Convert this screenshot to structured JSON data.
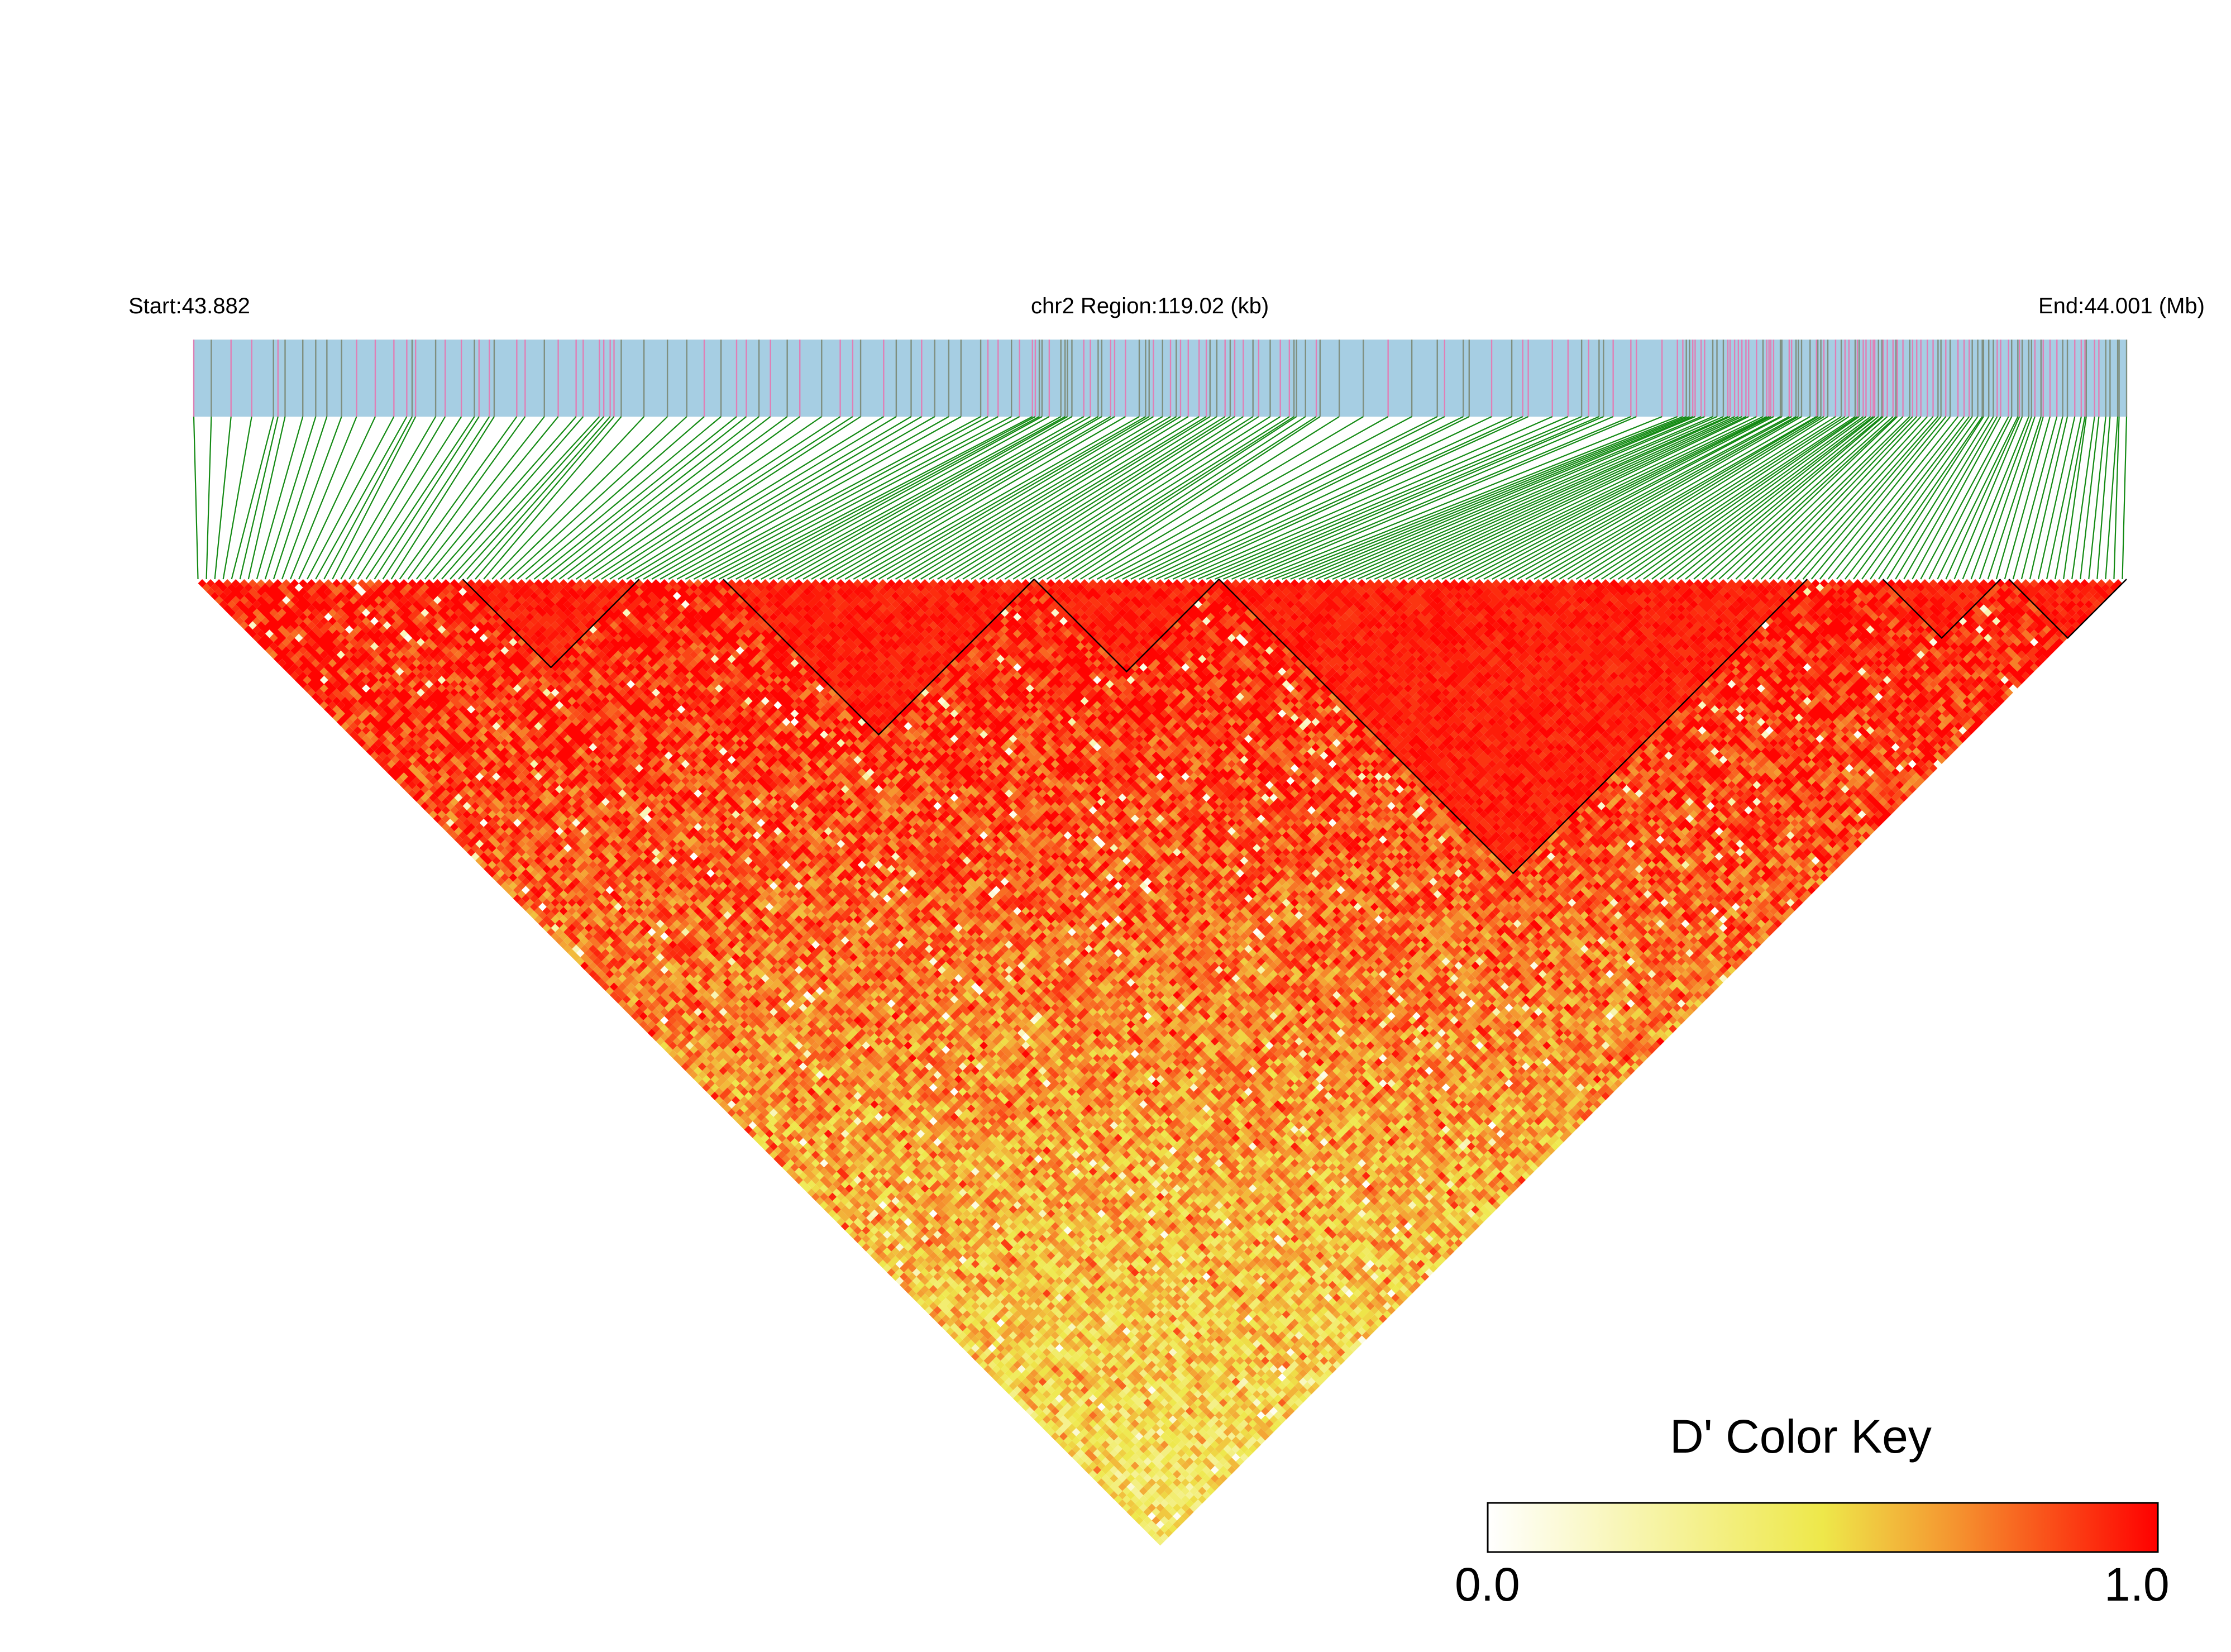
{
  "header": {
    "start_label": "Start:43.882",
    "region_label": "chr2 Region:119.02 (kb)",
    "end_label": "End:44.001 (Mb)"
  },
  "chart_data": {
    "type": "heatmap",
    "description_kind": "linkage disequilibrium triangle heatmap",
    "chromosome": "chr2",
    "region_start_mb": 43.882,
    "region_end_mb": 44.001,
    "region_length_kb": 119.02,
    "metric": "D'",
    "snp_count": 230,
    "color_scale": {
      "min": 0.0,
      "max": 1.0,
      "stops": [
        {
          "value": 0.0,
          "color": "#ffffff"
        },
        {
          "value": 0.5,
          "color": "#eee84a"
        },
        {
          "value": 0.7,
          "color": "#f5932f"
        },
        {
          "value": 1.0,
          "color": "#ff0000"
        }
      ]
    },
    "track_colors": {
      "bar_background": "#a6cee3",
      "snp_tick_primary": "#e07fb5",
      "snp_tick_secondary": "#7f8f7f",
      "connector_line": "#138a13",
      "block_outline": "#000000"
    },
    "ld_blocks_snp_index_ranges": [
      [
        32,
        52
      ],
      [
        63,
        99
      ],
      [
        100,
        121
      ],
      [
        122,
        191
      ],
      [
        201,
        214
      ],
      [
        216,
        229
      ]
    ],
    "legend": {
      "title": "D' Color Key",
      "min_label": "0.0",
      "max_label": "1.0",
      "placement": "bottom-right"
    }
  }
}
